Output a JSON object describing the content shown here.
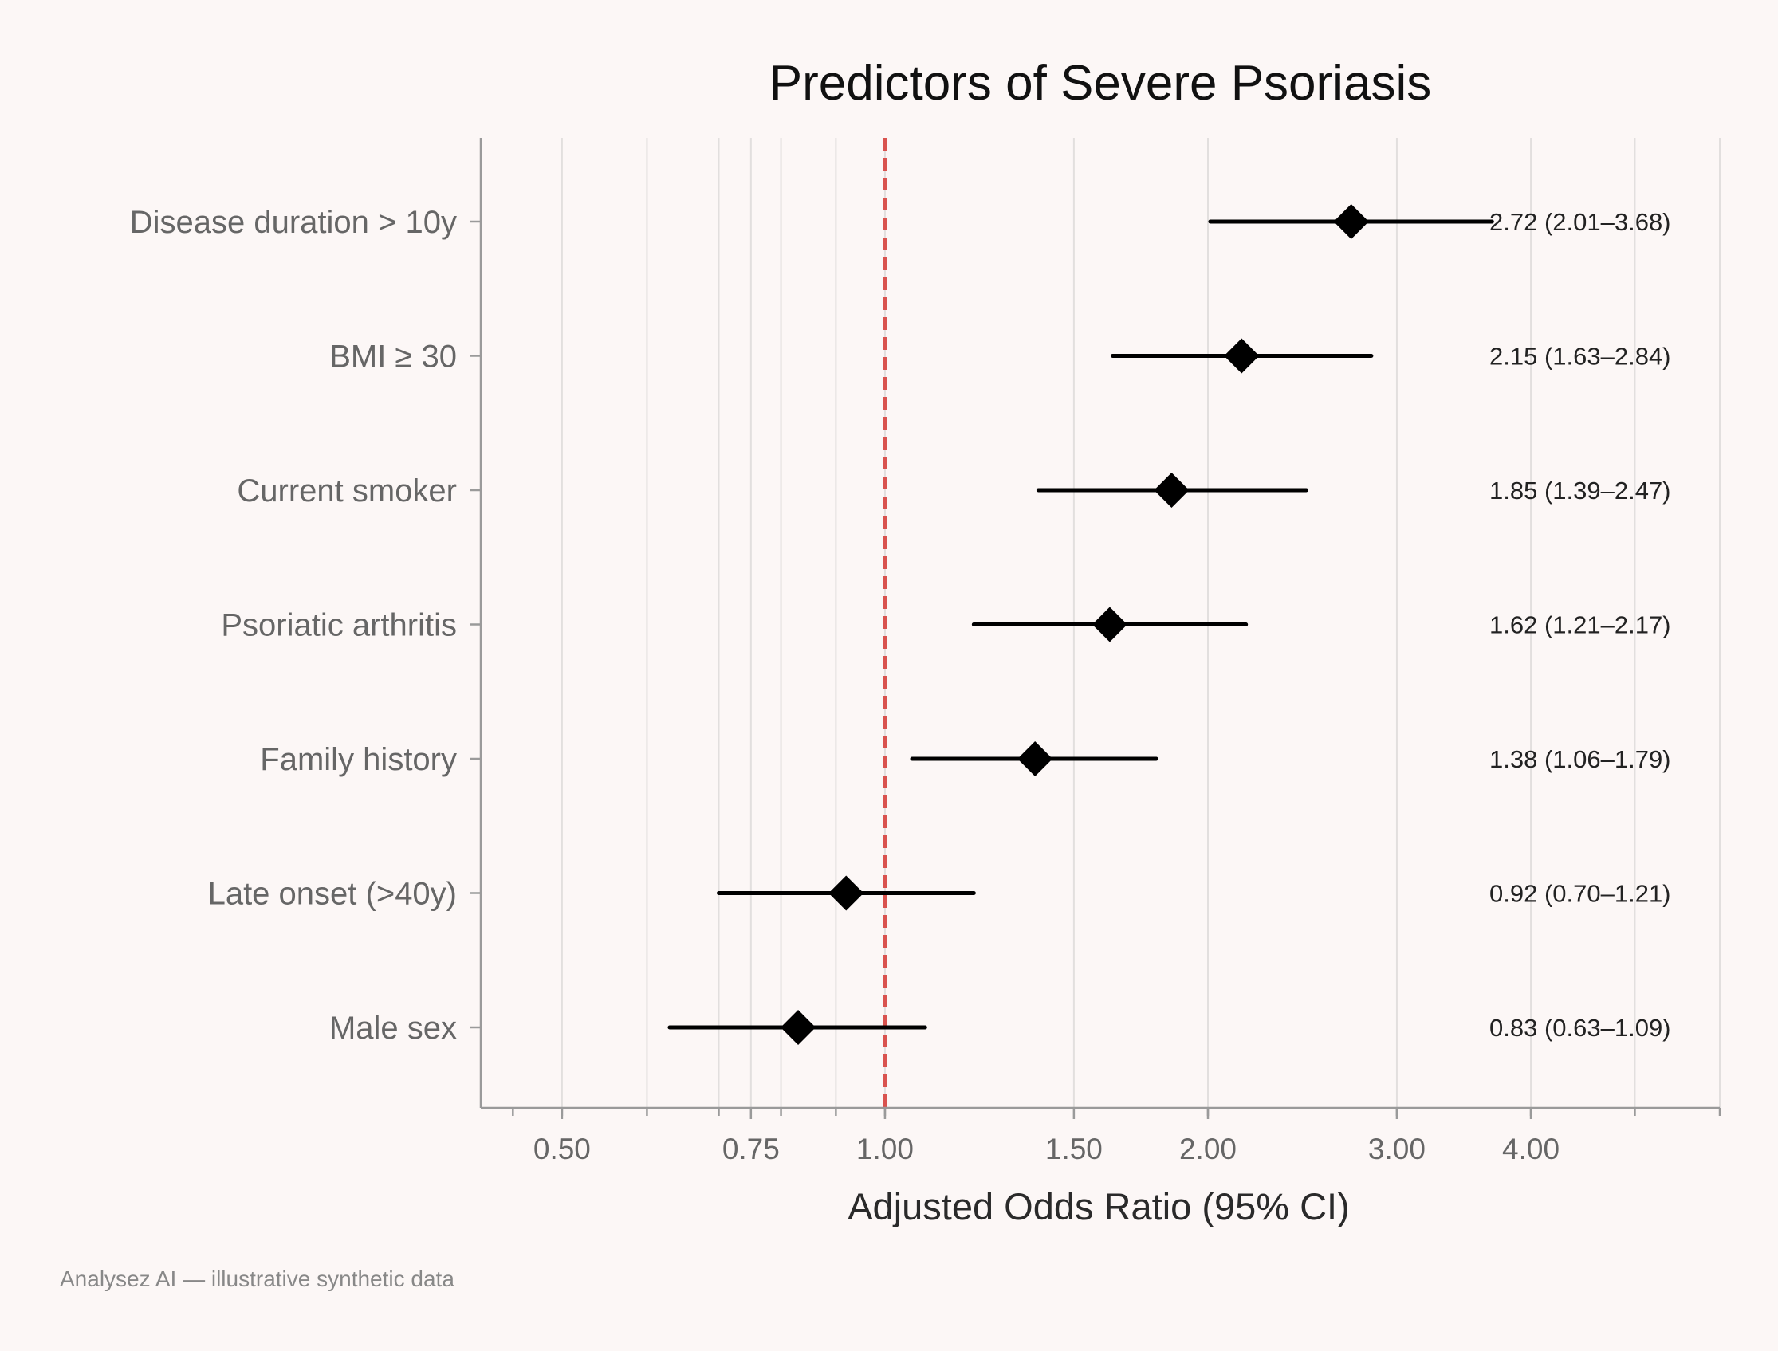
{
  "chart_data": {
    "type": "forest",
    "title": "Predictors of Severe Psoriasis",
    "xlabel": "Adjusted Odds Ratio (95% CI)",
    "ylabel": "",
    "x_scale": "log",
    "xlim": [
      0.42,
      6.0
    ],
    "xticks": [
      0.5,
      0.75,
      1.0,
      1.5,
      2.0,
      3.0,
      4.0
    ],
    "xtick_labels": [
      "0.50",
      "0.75",
      "1.00",
      "1.50",
      "2.00",
      "3.00",
      "4.00"
    ],
    "reference_line": 1.0,
    "grid": true,
    "marker": "diamond",
    "rows": [
      {
        "label": "Disease duration > 10y",
        "or": 2.72,
        "lo": 2.01,
        "hi": 3.68,
        "annotation": "2.72 (2.01–3.68)"
      },
      {
        "label": "BMI ≥ 30",
        "or": 2.15,
        "lo": 1.63,
        "hi": 2.84,
        "annotation": "2.15 (1.63–2.84)"
      },
      {
        "label": "Current smoker",
        "or": 1.85,
        "lo": 1.39,
        "hi": 2.47,
        "annotation": "1.85 (1.39–2.47)"
      },
      {
        "label": "Psoriatic arthritis",
        "or": 1.62,
        "lo": 1.21,
        "hi": 2.17,
        "annotation": "1.62 (1.21–2.17)"
      },
      {
        "label": "Family history",
        "or": 1.38,
        "lo": 1.06,
        "hi": 1.79,
        "annotation": "1.38 (1.06–1.79)"
      },
      {
        "label": "Late onset (>40y)",
        "or": 0.92,
        "lo": 0.7,
        "hi": 1.21,
        "annotation": "0.92 (0.70–1.21)"
      },
      {
        "label": "Male sex",
        "or": 0.83,
        "lo": 0.63,
        "hi": 1.09,
        "annotation": "0.83 (0.63–1.09)"
      }
    ]
  },
  "caption": "Analysez AI — illustrative synthetic data",
  "colors": {
    "background": "#fcf7f6",
    "marker": "#000000",
    "reference_line": "#d9534f"
  }
}
